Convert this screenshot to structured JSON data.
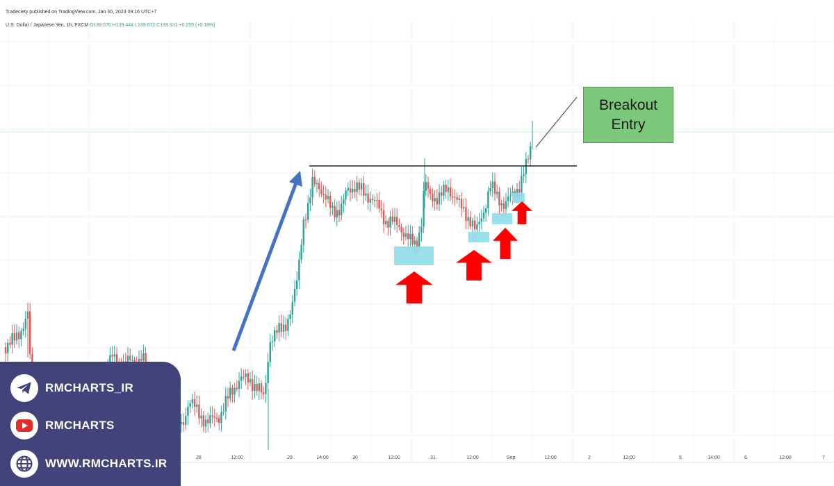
{
  "header": {
    "publisher_line": "Tradeciety published on TradingView.com, Jan 30, 2023 09:16 UTC+7",
    "symbol_line": "U.S. Dollar / Japanese Yen, 1h, FXCM",
    "ohlc_line": "O139.076 H139.444 L139.072 C139.331 +0.255 (+0.18%)"
  },
  "annotation": {
    "line1": "Breakout",
    "line2": "Entry"
  },
  "social": {
    "telegram": "RMCHARTS_IR",
    "youtube": "RMCHARTS",
    "website": "WWW.RMCHARTS.IR"
  },
  "colors": {
    "up": "#26a69a",
    "down": "#ef5350",
    "trend_arrow": "#4472c4",
    "support_box": "#8fdcea",
    "red_arrow": "#ff0000",
    "callout": "#7cc87a",
    "panel": "#41437a"
  },
  "chart_data": {
    "type": "candlestick",
    "x_tick_labels": [
      "26",
      "12:00",
      "29",
      "14:00",
      "30",
      "12:00",
      "31",
      "12:00",
      "Sep",
      "12:00",
      "2",
      "12:00",
      "5",
      "14:00",
      "6",
      "12:00",
      "7"
    ],
    "annotations": {
      "resistance_line": "horizontal level",
      "uptrend_arrow": "up",
      "support_zones": 3,
      "up_arrows": 4,
      "callout": "Breakout Entry"
    }
  }
}
